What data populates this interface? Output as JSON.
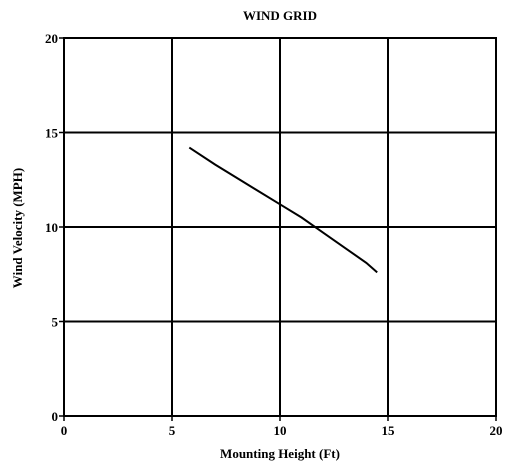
{
  "chart_data": {
    "type": "line",
    "title": "WIND GRID",
    "xlabel": "Mounting Height (Ft)",
    "ylabel": "Wind Velocity (MPH)",
    "xlim": [
      0,
      20
    ],
    "ylim": [
      0,
      20
    ],
    "xticks": [
      0,
      5,
      10,
      15,
      20
    ],
    "yticks": [
      0,
      5,
      10,
      15,
      20
    ],
    "grid": true,
    "series": [
      {
        "x": [
          5.8,
          7,
          8,
          9,
          10,
          11,
          12,
          13,
          14,
          14.5
        ],
        "y": [
          14.2,
          13.3,
          12.6,
          11.9,
          11.2,
          10.5,
          9.7,
          8.9,
          8.1,
          7.6
        ]
      }
    ]
  }
}
